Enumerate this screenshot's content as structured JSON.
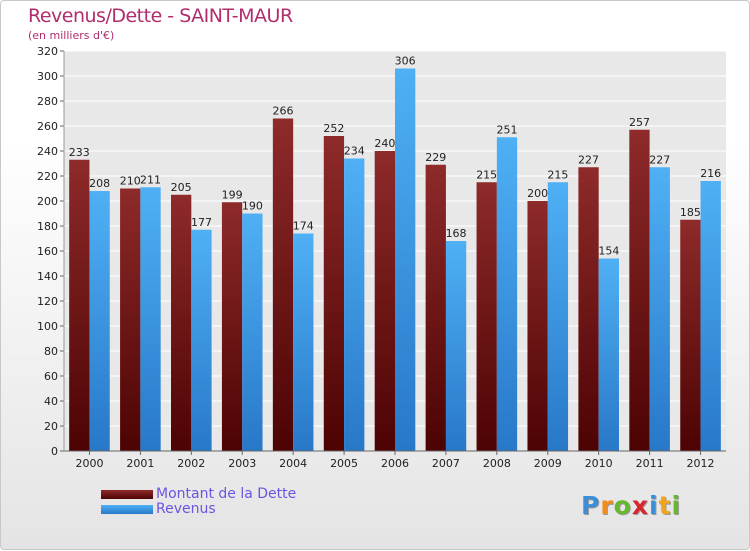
{
  "header": {
    "title": "Revenus/Dette - SAINT-MAUR",
    "subtitle": "(en milliers d'€)"
  },
  "chart_data": {
    "type": "bar",
    "title": "Revenus/Dette - SAINT-MAUR",
    "subtitle": "(en milliers d'€)",
    "xlabel": "",
    "ylabel": "",
    "ylim": [
      0,
      320
    ],
    "ytick_step": 20,
    "grid": true,
    "legend_position": "bottom-left",
    "categories": [
      "2000",
      "2001",
      "2002",
      "2003",
      "2004",
      "2005",
      "2006",
      "2007",
      "2008",
      "2009",
      "2010",
      "2011",
      "2012"
    ],
    "series": [
      {
        "name": "Montant de la Dette",
        "color": "#7a1c1c",
        "values": [
          233,
          210,
          205,
          199,
          266,
          252,
          240,
          229,
          215,
          200,
          227,
          257,
          185
        ]
      },
      {
        "name": "Revenus",
        "color": "#3f9ee8",
        "values": [
          208,
          211,
          177,
          190,
          174,
          234,
          306,
          168,
          251,
          215,
          154,
          227,
          216
        ]
      }
    ]
  },
  "logo": {
    "letters": [
      "P",
      "r",
      "o",
      "x",
      "i",
      "t",
      "i"
    ],
    "colors": [
      "#3a8fd8",
      "#f08c1c",
      "#66b82e",
      "#d8262e",
      "#3a8fd8",
      "#f0a51c",
      "#66b82e"
    ]
  }
}
